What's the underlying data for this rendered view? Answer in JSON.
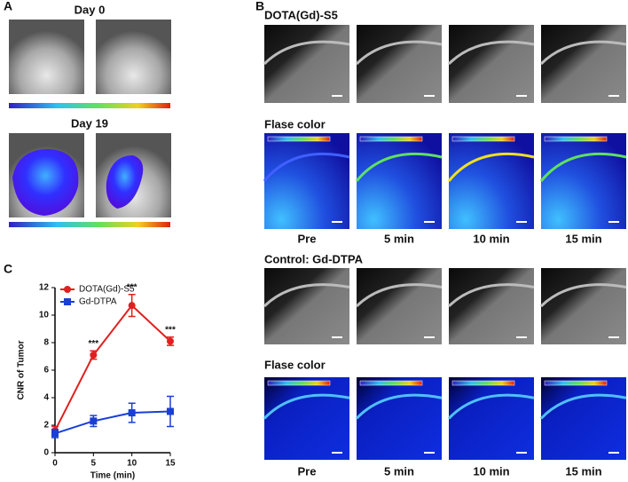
{
  "panel_labels": [
    "A",
    "B",
    "C"
  ],
  "panel_a": {
    "rows": [
      {
        "title": "Day 0"
      },
      {
        "title": "Day 19"
      }
    ]
  },
  "panel_b": {
    "groups": [
      {
        "title": "DOTA(Gd)-S5",
        "false_color_title": "Flase color"
      },
      {
        "title": "Control: Gd-DTPA",
        "false_color_title": "Flase color"
      }
    ],
    "timepoints": [
      "Pre",
      "5 min",
      "10 min",
      "15 min"
    ]
  },
  "chart_data": {
    "type": "line",
    "x": [
      0,
      5,
      10,
      15
    ],
    "xlim": [
      0,
      15
    ],
    "xticks": [
      0,
      5,
      10,
      15
    ],
    "ylim": [
      0,
      12
    ],
    "yticks": [
      0,
      2,
      4,
      6,
      8,
      10,
      12
    ],
    "xlabel": "Time (min)",
    "ylabel": "CNR of Tumor",
    "legend": "upper left",
    "series": [
      {
        "name": "DOTA(Gd)-S5",
        "color": "#e02020",
        "marker": "circle",
        "values": [
          1.6,
          7.1,
          10.7,
          8.1
        ],
        "errors": [
          0.3,
          0.3,
          0.8,
          0.3
        ]
      },
      {
        "name": "Gd-DTPA",
        "color": "#1a3fd6",
        "marker": "square",
        "values": [
          1.4,
          2.3,
          2.9,
          3.0
        ],
        "errors": [
          0.3,
          0.4,
          0.7,
          1.1
        ]
      }
    ],
    "annotations": [
      {
        "text": "***",
        "x": 5
      },
      {
        "text": "***",
        "x": 10
      },
      {
        "text": "***",
        "x": 15
      }
    ]
  }
}
